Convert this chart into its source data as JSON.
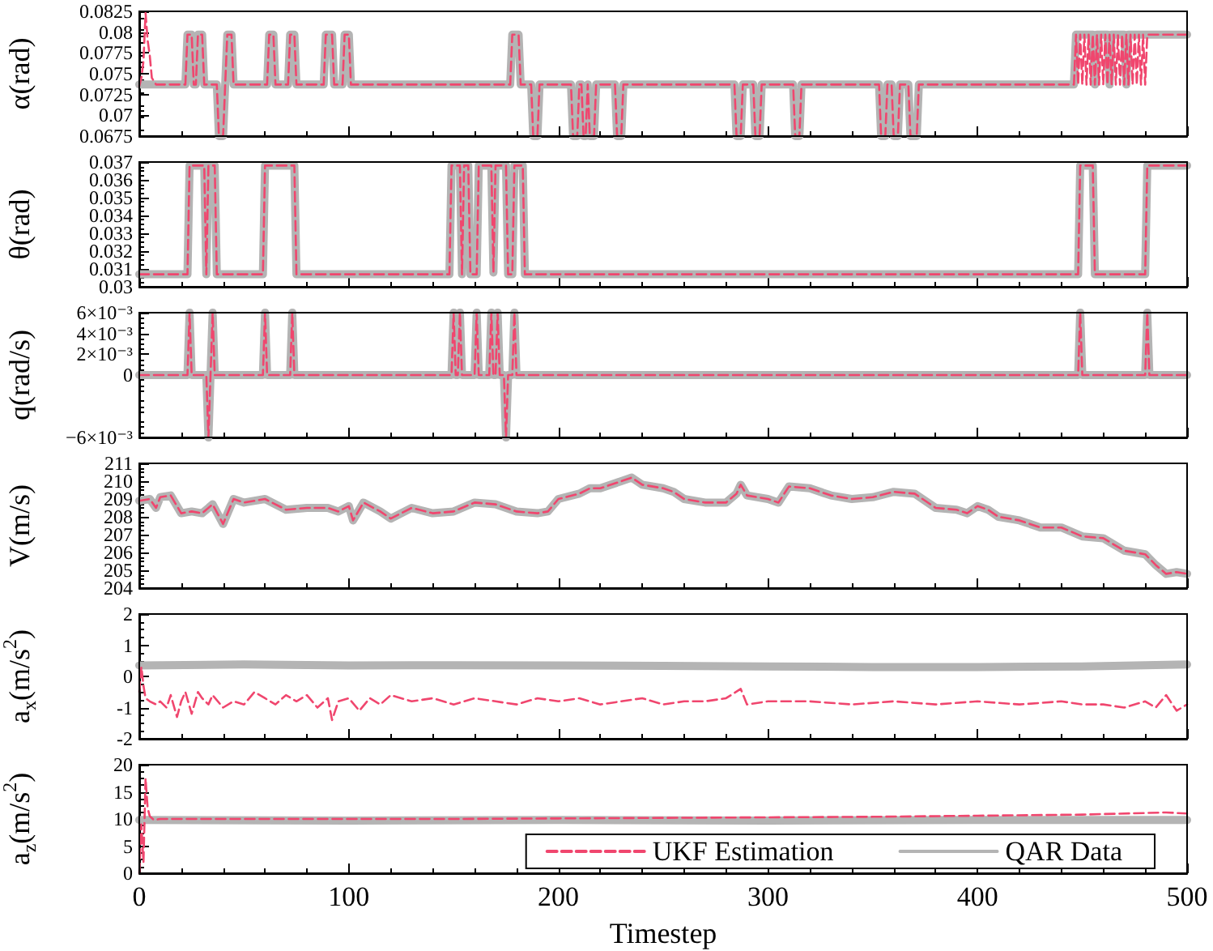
{
  "chart_data": [
    {
      "type": "line",
      "ylabel": "α(rad)",
      "xlim": [
        0,
        500
      ],
      "ylim": [
        0.0675,
        0.0825
      ],
      "yticks": [
        0.0675,
        0.07,
        0.0725,
        0.075,
        0.0775,
        0.08,
        0.0825
      ],
      "tick_labels": "y",
      "grid": false,
      "legend": false,
      "marker": "none",
      "series": [
        {
          "color": "#f0466e",
          "line_style": "dashed",
          "x": [
            0,
            1,
            2,
            3,
            4,
            5,
            6,
            8,
            22,
            23,
            25,
            26,
            27,
            28,
            30,
            31,
            37,
            38,
            40,
            41,
            42,
            44,
            45,
            61,
            62,
            64,
            65,
            71,
            72,
            74,
            75,
            88,
            89,
            92,
            93,
            97,
            98,
            100,
            101,
            177,
            178,
            181,
            182,
            187,
            188,
            190,
            191,
            206,
            207,
            209,
            210,
            211,
            212,
            213,
            214,
            215,
            217,
            218,
            227,
            228,
            230,
            231,
            284,
            285,
            287,
            288,
            293,
            294,
            296,
            297,
            312,
            313,
            315,
            316,
            353,
            354,
            356,
            357,
            359,
            360,
            362,
            363,
            367,
            368,
            371,
            372,
            446,
            447,
            448,
            449,
            450,
            451,
            452,
            453,
            454,
            455,
            456,
            457,
            458,
            459,
            460,
            461,
            462,
            463,
            464,
            465,
            466,
            467,
            468,
            469,
            470,
            471,
            472,
            473,
            474,
            475,
            476,
            477,
            478,
            479,
            480,
            481,
            500
          ],
          "values": [
            0.0735,
            0.0745,
            0.0765,
            0.0823,
            0.079,
            0.0772,
            0.0745,
            0.0737,
            0.0737,
            0.0797,
            0.0797,
            0.0737,
            0.0737,
            0.0797,
            0.0797,
            0.0737,
            0.0737,
            0.0675,
            0.0675,
            0.0737,
            0.0797,
            0.0797,
            0.0737,
            0.0737,
            0.0797,
            0.0797,
            0.0737,
            0.0737,
            0.0797,
            0.0797,
            0.0737,
            0.0737,
            0.0797,
            0.0797,
            0.0737,
            0.0737,
            0.0797,
            0.0797,
            0.0737,
            0.0737,
            0.0797,
            0.0797,
            0.0737,
            0.0737,
            0.0675,
            0.0675,
            0.0737,
            0.0737,
            0.0675,
            0.0675,
            0.0737,
            0.0737,
            0.0675,
            0.0675,
            0.0737,
            0.0675,
            0.0675,
            0.0737,
            0.0737,
            0.0675,
            0.0675,
            0.0737,
            0.0737,
            0.0675,
            0.0675,
            0.0737,
            0.0737,
            0.0675,
            0.0675,
            0.0737,
            0.0737,
            0.0675,
            0.0675,
            0.0737,
            0.0737,
            0.0675,
            0.0675,
            0.0737,
            0.0737,
            0.0675,
            0.0675,
            0.0737,
            0.0737,
            0.0675,
            0.0675,
            0.0737,
            0.0737,
            0.0797,
            0.0737,
            0.0797,
            0.0737,
            0.0797,
            0.0737,
            0.0797,
            0.0737,
            0.0797,
            0.0737,
            0.0797,
            0.0737,
            0.0797,
            0.0737,
            0.0797,
            0.0737,
            0.0797,
            0.0737,
            0.0797,
            0.0737,
            0.0797,
            0.0737,
            0.0797,
            0.0737,
            0.0797,
            0.0737,
            0.0797,
            0.0737,
            0.0797,
            0.0737,
            0.0797,
            0.0737,
            0.0797,
            0.0737,
            0.0797,
            0.0797
          ]
        },
        {
          "color": "#b4b4b4",
          "line_style": "solid",
          "x": [
            0,
            22,
            23,
            25,
            26,
            27,
            28,
            30,
            31,
            37,
            38,
            40,
            41,
            42,
            44,
            45,
            61,
            62,
            64,
            65,
            71,
            72,
            74,
            75,
            88,
            89,
            92,
            93,
            97,
            98,
            100,
            101,
            177,
            178,
            181,
            182,
            187,
            188,
            190,
            191,
            206,
            207,
            209,
            210,
            211,
            212,
            213,
            214,
            215,
            217,
            218,
            227,
            228,
            230,
            231,
            284,
            285,
            287,
            288,
            293,
            294,
            296,
            297,
            312,
            313,
            315,
            316,
            353,
            354,
            356,
            357,
            359,
            360,
            362,
            363,
            367,
            368,
            371,
            372,
            446,
            447,
            455,
            456,
            457,
            462,
            463,
            464,
            470,
            471,
            472,
            500
          ],
          "values": [
            0.0737,
            0.0737,
            0.0797,
            0.0797,
            0.0737,
            0.0737,
            0.0797,
            0.0797,
            0.0737,
            0.0737,
            0.0675,
            0.0675,
            0.0737,
            0.0797,
            0.0797,
            0.0737,
            0.0737,
            0.0797,
            0.0797,
            0.0737,
            0.0737,
            0.0797,
            0.0797,
            0.0737,
            0.0737,
            0.0797,
            0.0797,
            0.0737,
            0.0737,
            0.0797,
            0.0797,
            0.0737,
            0.0737,
            0.0797,
            0.0797,
            0.0737,
            0.0737,
            0.0675,
            0.0675,
            0.0737,
            0.0737,
            0.0675,
            0.0675,
            0.0737,
            0.0737,
            0.0675,
            0.0675,
            0.0737,
            0.0675,
            0.0675,
            0.0737,
            0.0737,
            0.0675,
            0.0675,
            0.0737,
            0.0737,
            0.0675,
            0.0675,
            0.0737,
            0.0737,
            0.0675,
            0.0675,
            0.0737,
            0.0737,
            0.0675,
            0.0675,
            0.0737,
            0.0737,
            0.0675,
            0.0675,
            0.0737,
            0.0737,
            0.0675,
            0.0675,
            0.0737,
            0.0737,
            0.0675,
            0.0675,
            0.0737,
            0.0737,
            0.0797,
            0.0797,
            0.0737,
            0.0797,
            0.0797,
            0.0737,
            0.0797,
            0.0797,
            0.0737,
            0.0797,
            0.0797
          ]
        }
      ]
    },
    {
      "type": "line",
      "ylabel": "θ(rad)",
      "xlim": [
        0,
        500
      ],
      "ylim": [
        0.03,
        0.037
      ],
      "yticks": [
        0.03,
        0.031,
        0.032,
        0.033,
        0.034,
        0.035,
        0.036,
        0.037
      ],
      "tick_labels": "y",
      "grid": false,
      "legend": false,
      "marker": "none",
      "series": [
        {
          "color": "#f0466e",
          "line_style": "dashed",
          "x": [
            0,
            23,
            24,
            31,
            32,
            33,
            36,
            37,
            59,
            60,
            74,
            75,
            148,
            149,
            153,
            154,
            155,
            157,
            158,
            161,
            162,
            168,
            169,
            170,
            175,
            176,
            178,
            179,
            183,
            184,
            448,
            449,
            455,
            456,
            480,
            481,
            500
          ],
          "values": [
            0.0307,
            0.0307,
            0.0368,
            0.0368,
            0.0307,
            0.0368,
            0.0368,
            0.0307,
            0.0307,
            0.0368,
            0.0368,
            0.0307,
            0.0307,
            0.0368,
            0.0368,
            0.0307,
            0.0368,
            0.0368,
            0.0307,
            0.0307,
            0.0368,
            0.0368,
            0.0308,
            0.0368,
            0.0368,
            0.0307,
            0.0307,
            0.0368,
            0.0368,
            0.0307,
            0.0307,
            0.0368,
            0.0368,
            0.0307,
            0.0307,
            0.0368,
            0.0368
          ]
        },
        {
          "color": "#b4b4b4",
          "line_style": "solid",
          "x": [
            0,
            23,
            24,
            31,
            32,
            33,
            36,
            37,
            59,
            60,
            74,
            75,
            148,
            149,
            153,
            154,
            155,
            157,
            158,
            161,
            162,
            168,
            169,
            170,
            175,
            176,
            178,
            179,
            183,
            184,
            448,
            449,
            455,
            456,
            480,
            481,
            500
          ],
          "values": [
            0.0307,
            0.0307,
            0.0368,
            0.0368,
            0.0307,
            0.0368,
            0.0368,
            0.0307,
            0.0307,
            0.0368,
            0.0368,
            0.0307,
            0.0307,
            0.0368,
            0.0368,
            0.0307,
            0.0368,
            0.0368,
            0.0307,
            0.0307,
            0.0368,
            0.0368,
            0.0308,
            0.0368,
            0.0368,
            0.0307,
            0.0307,
            0.0368,
            0.0368,
            0.0307,
            0.0307,
            0.0368,
            0.0368,
            0.0307,
            0.0307,
            0.0368,
            0.0368
          ]
        }
      ]
    },
    {
      "type": "line",
      "ylabel": "q(rad/s)",
      "xlim": [
        0,
        500
      ],
      "ylim": [
        -0.006,
        0.006
      ],
      "yticks": [
        {
          "value": -0.006,
          "label": "−6×10⁻³"
        },
        {
          "value": 0,
          "label": "0"
        },
        {
          "value": 0.002,
          "label": "2×10⁻³"
        },
        {
          "value": 0.004,
          "label": "4×10⁻³"
        },
        {
          "value": 0.006,
          "label": "6×10⁻³"
        }
      ],
      "tick_labels": "y",
      "grid": false,
      "legend": false,
      "marker": "none",
      "series": [
        {
          "color": "#f0466e",
          "line_style": "dashed",
          "x": [
            0,
            23,
            24,
            25,
            32,
            33,
            34,
            35,
            36,
            59,
            60,
            61,
            72,
            73,
            74,
            149,
            150,
            151,
            152,
            153,
            154,
            160,
            161,
            162,
            167,
            168,
            169,
            170,
            171,
            172,
            174,
            175,
            176,
            178,
            179,
            180,
            448,
            449,
            450,
            480,
            481,
            482,
            500
          ],
          "values": [
            0,
            0,
            0.006,
            0,
            0,
            -0.006,
            0,
            0.006,
            0,
            0,
            0.006,
            0,
            0,
            0.006,
            0,
            0,
            0.006,
            0,
            0,
            0.006,
            0,
            0,
            0.006,
            0,
            0,
            0.006,
            0,
            0,
            0.006,
            0,
            0,
            -0.006,
            0,
            0,
            0.006,
            0,
            0,
            0.006,
            0,
            0,
            0.006,
            0,
            0
          ]
        },
        {
          "color": "#b4b4b4",
          "line_style": "solid",
          "x": [
            0,
            23,
            24,
            25,
            32,
            33,
            34,
            35,
            36,
            59,
            60,
            61,
            72,
            73,
            74,
            149,
            150,
            151,
            152,
            153,
            154,
            160,
            161,
            162,
            167,
            168,
            169,
            170,
            171,
            172,
            174,
            175,
            176,
            178,
            179,
            180,
            448,
            449,
            450,
            480,
            481,
            482,
            500
          ],
          "values": [
            0,
            0,
            0.006,
            0,
            0,
            -0.006,
            0,
            0.006,
            0,
            0,
            0.006,
            0,
            0,
            0.006,
            0,
            0,
            0.006,
            0,
            0,
            0.006,
            0,
            0,
            0.006,
            0,
            0,
            0.006,
            0,
            0,
            0.006,
            0,
            0,
            -0.006,
            0,
            0,
            0.006,
            0,
            0,
            0.006,
            0,
            0,
            0.006,
            0,
            0
          ]
        }
      ]
    },
    {
      "type": "line",
      "ylabel": "V(m/s)",
      "xlim": [
        0,
        500
      ],
      "ylim": [
        204,
        211
      ],
      "yticks": [
        204,
        205,
        206,
        207,
        208,
        209,
        210,
        211
      ],
      "tick_labels": "y",
      "grid": false,
      "legend": false,
      "marker": "none",
      "series": [
        {
          "color": "#f0466e",
          "line_style": "dashed",
          "x": [
            0,
            5,
            8,
            10,
            15,
            20,
            25,
            30,
            35,
            40,
            45,
            50,
            60,
            70,
            80,
            90,
            95,
            100,
            102,
            107,
            115,
            120,
            130,
            140,
            150,
            160,
            170,
            180,
            190,
            195,
            200,
            210,
            215,
            220,
            230,
            235,
            240,
            250,
            255,
            260,
            270,
            280,
            285,
            287,
            290,
            300,
            305,
            310,
            320,
            330,
            340,
            350,
            360,
            370,
            380,
            390,
            395,
            400,
            405,
            410,
            420,
            430,
            440,
            450,
            460,
            470,
            480,
            485,
            490,
            495,
            500
          ],
          "values": [
            208.9,
            209.0,
            208.5,
            209.1,
            209.2,
            208.2,
            208.3,
            208.2,
            208.7,
            207.6,
            209.0,
            208.8,
            209.0,
            208.4,
            208.5,
            208.5,
            208.3,
            208.6,
            207.8,
            208.8,
            208.3,
            207.9,
            208.5,
            208.2,
            208.3,
            208.8,
            208.7,
            208.3,
            208.2,
            208.3,
            209.0,
            209.3,
            209.6,
            209.6,
            210.0,
            210.2,
            209.8,
            209.6,
            209.4,
            209.0,
            208.8,
            208.8,
            209.3,
            209.8,
            209.2,
            209.0,
            208.8,
            209.7,
            209.6,
            209.2,
            209.0,
            209.1,
            209.4,
            209.3,
            208.5,
            208.4,
            208.2,
            208.6,
            208.4,
            208.0,
            207.8,
            207.4,
            207.4,
            206.9,
            206.8,
            206.1,
            205.9,
            205.3,
            204.8,
            204.9,
            204.8
          ]
        },
        {
          "color": "#b4b4b4",
          "line_style": "solid",
          "x": [
            0,
            5,
            8,
            10,
            15,
            20,
            25,
            30,
            35,
            40,
            45,
            50,
            60,
            70,
            80,
            90,
            95,
            100,
            102,
            107,
            115,
            120,
            130,
            140,
            150,
            160,
            170,
            180,
            190,
            195,
            200,
            210,
            215,
            220,
            230,
            235,
            240,
            250,
            255,
            260,
            270,
            280,
            285,
            287,
            290,
            300,
            305,
            310,
            320,
            330,
            340,
            350,
            360,
            370,
            380,
            390,
            395,
            400,
            405,
            410,
            420,
            430,
            440,
            450,
            460,
            470,
            480,
            485,
            490,
            495,
            500
          ],
          "values": [
            208.9,
            209.0,
            208.5,
            209.1,
            209.2,
            208.2,
            208.3,
            208.2,
            208.7,
            207.6,
            209.0,
            208.8,
            209.0,
            208.4,
            208.5,
            208.5,
            208.3,
            208.6,
            207.8,
            208.8,
            208.3,
            207.9,
            208.5,
            208.2,
            208.3,
            208.8,
            208.7,
            208.3,
            208.2,
            208.3,
            209.0,
            209.3,
            209.6,
            209.6,
            210.0,
            210.2,
            209.8,
            209.6,
            209.4,
            209.0,
            208.8,
            208.8,
            209.3,
            209.8,
            209.2,
            209.0,
            208.8,
            209.7,
            209.6,
            209.2,
            209.0,
            209.1,
            209.4,
            209.3,
            208.5,
            208.4,
            208.2,
            208.6,
            208.4,
            208.0,
            207.8,
            207.4,
            207.4,
            206.9,
            206.8,
            206.1,
            205.9,
            205.3,
            204.8,
            204.9,
            204.8
          ]
        }
      ]
    },
    {
      "type": "line",
      "ylabel": "a$_{x}$(m/s$^{2}$)",
      "xlim": [
        0,
        500
      ],
      "ylim": [
        -2,
        2
      ],
      "yticks": [
        -2,
        -1,
        0,
        1,
        2
      ],
      "tick_labels": "y",
      "grid": false,
      "legend": false,
      "marker": "none",
      "series": [
        {
          "color": "#f0466e",
          "line_style": "dashed",
          "x": [
            0,
            1,
            2,
            3,
            5,
            8,
            10,
            13,
            15,
            18,
            20,
            22,
            25,
            28,
            30,
            33,
            35,
            40,
            45,
            50,
            55,
            60,
            65,
            70,
            75,
            80,
            85,
            90,
            92,
            95,
            100,
            105,
            110,
            115,
            120,
            130,
            140,
            150,
            160,
            170,
            180,
            190,
            200,
            210,
            220,
            230,
            240,
            250,
            260,
            270,
            280,
            287,
            290,
            300,
            320,
            340,
            360,
            380,
            400,
            420,
            440,
            450,
            460,
            470,
            480,
            485,
            490,
            495,
            500
          ],
          "values": [
            -0.5,
            0.3,
            -0.3,
            -0.7,
            -0.8,
            -0.9,
            -0.8,
            -1.0,
            -0.6,
            -1.3,
            -0.8,
            -0.5,
            -1.2,
            -0.5,
            -0.7,
            -0.9,
            -0.6,
            -1.0,
            -0.8,
            -0.9,
            -0.5,
            -0.7,
            -0.9,
            -0.6,
            -0.8,
            -0.6,
            -1.0,
            -0.7,
            -1.4,
            -0.8,
            -0.7,
            -1.1,
            -0.7,
            -0.9,
            -0.6,
            -0.8,
            -0.7,
            -0.9,
            -0.7,
            -0.8,
            -0.9,
            -0.7,
            -0.8,
            -0.7,
            -0.9,
            -0.8,
            -0.7,
            -0.9,
            -0.8,
            -0.8,
            -0.7,
            -0.4,
            -0.9,
            -0.8,
            -0.8,
            -0.9,
            -0.8,
            -0.9,
            -0.8,
            -0.9,
            -0.8,
            -0.9,
            -0.9,
            -1.0,
            -0.8,
            -1.0,
            -0.6,
            -1.1,
            -0.9
          ]
        },
        {
          "color": "#b4b4b4",
          "line_style": "solid",
          "x": [
            0,
            50,
            100,
            150,
            200,
            250,
            300,
            350,
            400,
            450,
            500
          ],
          "values": [
            0.35,
            0.38,
            0.35,
            0.36,
            0.35,
            0.34,
            0.32,
            0.3,
            0.3,
            0.32,
            0.38
          ]
        }
      ]
    },
    {
      "type": "line",
      "ylabel": "a$_{z}$(m/s$^{2}$)",
      "xlabel": "Timestep",
      "xlim": [
        0,
        500
      ],
      "xticks": [
        0,
        100,
        200,
        300,
        400,
        500
      ],
      "ylim": [
        0,
        20
      ],
      "yticks": [
        0,
        5,
        10,
        15,
        20
      ],
      "grid": false,
      "legend": "bottom right",
      "marker": "none",
      "series": [
        {
          "name": "UKF Estimation",
          "color": "#f0466e",
          "line_style": "dashed",
          "x": [
            0,
            1,
            2,
            3,
            4,
            5,
            7,
            10,
            50,
            100,
            150,
            200,
            250,
            300,
            350,
            400,
            450,
            490,
            500
          ],
          "values": [
            0,
            9,
            2,
            17.5,
            12,
            10.5,
            9.8,
            10,
            10,
            10,
            10,
            10.1,
            10.2,
            10.3,
            10.4,
            10.6,
            10.8,
            11.2,
            11.0
          ]
        },
        {
          "name": "QAR Data",
          "color": "#b4b4b4",
          "line_style": "solid",
          "x": [
            0,
            100,
            200,
            300,
            400,
            500
          ],
          "values": [
            9.8,
            9.7,
            9.8,
            9.7,
            9.8,
            9.8
          ]
        }
      ]
    }
  ]
}
